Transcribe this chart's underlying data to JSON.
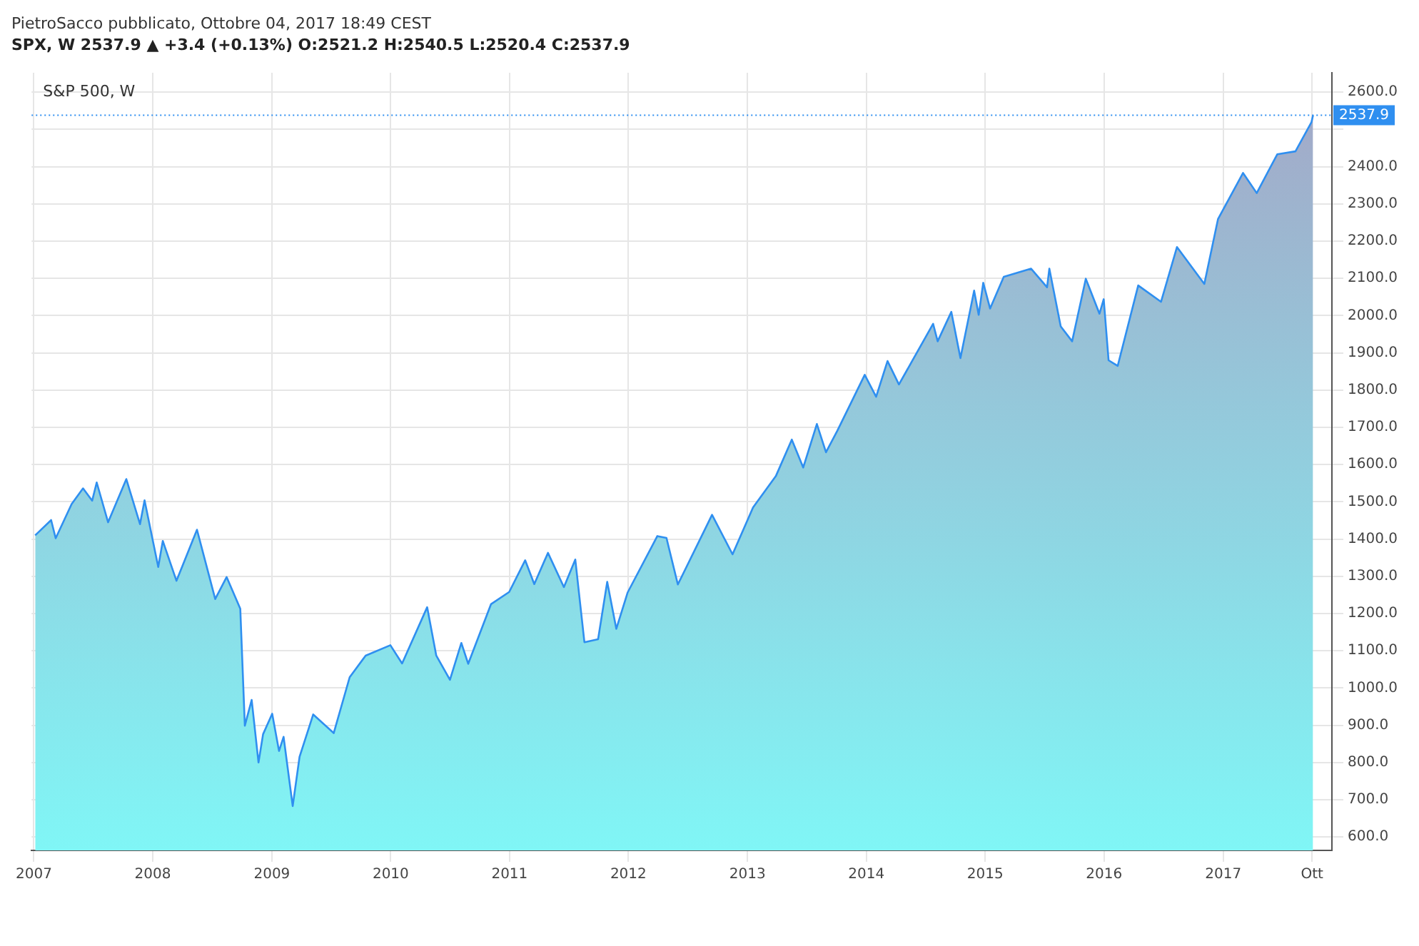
{
  "chart_data": {
    "type": "area",
    "title": "S&P 500, W",
    "annotations": [
      "PietroSacco pubblicato, Ottobre 04, 2017 18:49 CEST",
      "SPX, W 2537.9 ▲ +3.4 (+0.13%) O:2521.2 H:2540.5 L:2520.4 C:2537.9"
    ],
    "x": [
      "2007-01-05",
      "2007-02-23",
      "2007-03-09",
      "2007-04-27",
      "2007-06-01",
      "2007-06-29",
      "2007-07-13",
      "2007-08-17",
      "2007-10-12",
      "2007-11-23",
      "2007-12-07",
      "2008-01-18",
      "2008-02-01",
      "2008-03-14",
      "2008-05-16",
      "2008-07-11",
      "2008-08-15",
      "2008-09-26",
      "2008-10-10",
      "2008-10-31",
      "2008-11-21",
      "2008-12-05",
      "2009-01-02",
      "2009-01-23",
      "2009-02-06",
      "2009-03-06",
      "2009-03-27",
      "2009-05-08",
      "2009-07-10",
      "2009-08-28",
      "2009-10-16",
      "2009-12-31",
      "2010-02-05",
      "2010-04-23",
      "2010-05-21",
      "2010-07-02",
      "2010-08-06",
      "2010-08-27",
      "2010-11-05",
      "2010-12-31",
      "2011-02-18",
      "2011-03-18",
      "2011-04-29",
      "2011-06-17",
      "2011-07-22",
      "2011-08-19",
      "2011-09-30",
      "2011-10-28",
      "2011-11-25",
      "2011-12-30",
      "2012-03-30",
      "2012-04-27",
      "2012-06-01",
      "2012-09-14",
      "2012-11-16",
      "2013-01-18",
      "2013-03-29",
      "2013-05-17",
      "2013-06-21",
      "2013-08-02",
      "2013-08-30",
      "2013-10-04",
      "2013-12-27",
      "2014-01-31",
      "2014-03-07",
      "2014-04-11",
      "2014-07-25",
      "2014-08-08",
      "2014-09-19",
      "2014-10-17",
      "2014-11-28",
      "2014-12-12",
      "2014-12-26",
      "2015-01-16",
      "2015-02-27",
      "2015-05-22",
      "2015-07-10",
      "2015-07-17",
      "2015-08-21",
      "2015-09-25",
      "2015-11-06",
      "2015-12-18",
      "2015-12-31",
      "2016-01-15",
      "2016-02-12",
      "2016-04-15",
      "2016-06-24",
      "2016-08-12",
      "2016-11-04",
      "2016-12-16",
      "2017-03-03",
      "2017-04-14",
      "2017-06-16",
      "2017-08-11",
      "2017-09-29",
      "2017-10-04"
    ],
    "series": [
      {
        "color": "#2f8ff0",
        "values": [
          1410,
          1451,
          1402,
          1494,
          1536,
          1503,
          1552,
          1445,
          1561,
          1440,
          1504,
          1325,
          1395,
          1288,
          1425,
          1239,
          1298,
          1213,
          899,
          968,
          800,
          876,
          931,
          831,
          869,
          683,
          815,
          929,
          879,
          1029,
          1087,
          1115,
          1066,
          1217,
          1087,
          1022,
          1121,
          1065,
          1225,
          1258,
          1343,
          1279,
          1363,
          1271,
          1345,
          1123,
          1131,
          1285,
          1159,
          1257,
          1408,
          1403,
          1278,
          1465,
          1359,
          1485,
          1569,
          1667,
          1592,
          1709,
          1633,
          1691,
          1841,
          1782,
          1878,
          1815,
          1978,
          1931,
          2010,
          1886,
          2067,
          2002,
          2088,
          2019,
          2104,
          2126,
          2076,
          2126,
          1971,
          1931,
          2099,
          2005,
          2044,
          1880,
          1865,
          2081,
          2037,
          2184,
          2085,
          2259,
          2383,
          2329,
          2433,
          2441,
          2519,
          2537.9
        ]
      }
    ],
    "xlim": [
      "2006-12-25",
      "2017-12-01"
    ],
    "xticks": [
      {
        "value": "2007-01-01",
        "label": "2007"
      },
      {
        "value": "2008-01-01",
        "label": "2008"
      },
      {
        "value": "2009-01-01",
        "label": "2009"
      },
      {
        "value": "2010-01-01",
        "label": "2010"
      },
      {
        "value": "2011-01-01",
        "label": "2011"
      },
      {
        "value": "2012-01-01",
        "label": "2012"
      },
      {
        "value": "2013-01-01",
        "label": "2013"
      },
      {
        "value": "2014-01-01",
        "label": "2014"
      },
      {
        "value": "2015-01-01",
        "label": "2015"
      },
      {
        "value": "2016-01-01",
        "label": "2016"
      },
      {
        "value": "2017-01-01",
        "label": "2017"
      },
      {
        "value": "2017-10-01",
        "label": "Ott"
      }
    ],
    "ylim": [
      564,
      2652
    ],
    "yticks": [
      {
        "value": 600,
        "label": "600.0"
      },
      {
        "value": 700,
        "label": "700.0"
      },
      {
        "value": 800,
        "label": "800.0"
      },
      {
        "value": 900,
        "label": "900.0"
      },
      {
        "value": 1000,
        "label": "1000.0"
      },
      {
        "value": 1100,
        "label": "1100.0"
      },
      {
        "value": 1200,
        "label": "1200.0"
      },
      {
        "value": 1300,
        "label": "1300.0"
      },
      {
        "value": 1400,
        "label": "1400.0"
      },
      {
        "value": 1500,
        "label": "1500.0"
      },
      {
        "value": 1600,
        "label": "1600.0"
      },
      {
        "value": 1700,
        "label": "1700.0"
      },
      {
        "value": 1800,
        "label": "1800.0"
      },
      {
        "value": 1900,
        "label": "1900.0"
      },
      {
        "value": 2000,
        "label": "2000.0"
      },
      {
        "value": 2100,
        "label": "2100.0"
      },
      {
        "value": 2200,
        "label": "2200.0"
      },
      {
        "value": 2300,
        "label": "2300.0"
      },
      {
        "value": 2400,
        "label": "2400.0"
      },
      {
        "value": 2500,
        "label": null
      },
      {
        "value": 2600,
        "label": "2600.0"
      }
    ],
    "ref_lines": [
      {
        "axis": "y",
        "value": 2537.9,
        "label": "2537.9",
        "color": "#2f8ff0",
        "line_style": "dotted"
      }
    ],
    "grid": true,
    "legend": false,
    "marker": "none",
    "line_style": "solid"
  }
}
